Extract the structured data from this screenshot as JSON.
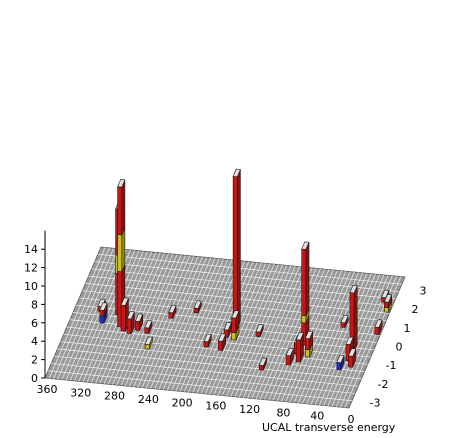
{
  "chart_data": {
    "type": "bar3d",
    "title": "",
    "xlabel": "UCAL transverse energy",
    "ylabel": "",
    "zlabel": "",
    "phi_ticks": [
      "360",
      "320",
      "280",
      "240",
      "200",
      "160",
      "120",
      "80",
      "40",
      "0"
    ],
    "eta_ticks": [
      "3",
      "2",
      "1",
      "0",
      "-1",
      "-2",
      "-3"
    ],
    "z_ticks": [
      "0",
      "2",
      "4",
      "6",
      "8",
      "10",
      "12",
      "14"
    ],
    "phi_range": [
      0,
      360
    ],
    "eta_range": [
      -3.5,
      3.5
    ],
    "z_range": [
      0,
      16
    ],
    "grid": true,
    "colors": {
      "floor_fill": "#9a9a9a",
      "floor_grid": "#ffffff",
      "red": "#cc1414",
      "yellow": "#cdbf1a",
      "blue": "#1a2ec2",
      "top": "#e0e0e0",
      "edge": "#1a1a1a"
    },
    "towers": [
      {
        "phi": 300,
        "eta": -0.3,
        "segments": [
          {
            "color": "red",
            "value": 6
          },
          {
            "color": "yellow",
            "value": 4
          },
          {
            "color": "red",
            "value": 5.2
          }
        ]
      },
      {
        "phi": 308,
        "eta": 0.3,
        "segments": [
          {
            "color": "red",
            "value": 4.5
          },
          {
            "color": "yellow",
            "value": 2
          },
          {
            "color": "red",
            "value": 5
          }
        ]
      },
      {
        "phi": 322,
        "eta": -0.2,
        "segments": [
          {
            "color": "blue",
            "value": 0.8
          },
          {
            "color": "red",
            "value": 0.6
          }
        ]
      },
      {
        "phi": 294,
        "eta": -0.5,
        "segments": [
          {
            "color": "red",
            "value": 2.8
          }
        ]
      },
      {
        "phi": 286,
        "eta": -0.6,
        "segments": [
          {
            "color": "red",
            "value": 1.6
          }
        ]
      },
      {
        "phi": 278,
        "eta": -0.4,
        "segments": [
          {
            "color": "red",
            "value": 1
          }
        ]
      },
      {
        "phi": 266,
        "eta": -0.5,
        "segments": [
          {
            "color": "red",
            "value": 0.6
          }
        ]
      },
      {
        "phi": 168,
        "eta": 0.2,
        "segments": [
          {
            "color": "red",
            "value": 16.5
          }
        ]
      },
      {
        "phi": 164,
        "eta": -0.4,
        "segments": [
          {
            "color": "yellow",
            "value": 0.8
          },
          {
            "color": "red",
            "value": 1.6
          }
        ]
      },
      {
        "phi": 174,
        "eta": -0.3,
        "segments": [
          {
            "color": "red",
            "value": 0.8
          }
        ]
      },
      {
        "phi": 174,
        "eta": -1.0,
        "segments": [
          {
            "color": "red",
            "value": 1
          }
        ]
      },
      {
        "phi": 82,
        "eta": -0.3,
        "segments": [
          {
            "color": "red",
            "value": 2.4
          },
          {
            "color": "yellow",
            "value": 0.8
          },
          {
            "color": "red",
            "value": 7.2
          }
        ]
      },
      {
        "phi": 86,
        "eta": -0.8,
        "segments": [
          {
            "color": "red",
            "value": 1.2
          }
        ]
      },
      {
        "phi": 80,
        "eta": -1.2,
        "segments": [
          {
            "color": "red",
            "value": 2.4
          }
        ]
      },
      {
        "phi": 72,
        "eta": -0.9,
        "segments": [
          {
            "color": "yellow",
            "value": 0.8
          },
          {
            "color": "red",
            "value": 1.2
          }
        ]
      },
      {
        "phi": 90,
        "eta": -1.4,
        "segments": [
          {
            "color": "red",
            "value": 1
          }
        ]
      },
      {
        "phi": 24,
        "eta": -0.4,
        "segments": [
          {
            "color": "red",
            "value": 6.4
          }
        ]
      },
      {
        "phi": 24,
        "eta": -0.9,
        "segments": [
          {
            "color": "red",
            "value": 1.8
          }
        ]
      },
      {
        "phi": 30,
        "eta": -1.4,
        "segments": [
          {
            "color": "blue",
            "value": 0.8
          }
        ]
      },
      {
        "phi": 18,
        "eta": -1.2,
        "segments": [
          {
            "color": "red",
            "value": 1.2
          }
        ]
      },
      {
        "phi": 4,
        "eta": 1.8,
        "segments": [
          {
            "color": "yellow",
            "value": 0.5
          },
          {
            "color": "red",
            "value": 0.6
          }
        ]
      },
      {
        "phi": 4,
        "eta": 0.6,
        "segments": [
          {
            "color": "red",
            "value": 0.8
          }
        ]
      },
      {
        "phi": 246,
        "eta": 0.4,
        "segments": [
          {
            "color": "red",
            "value": 0.6
          }
        ]
      },
      {
        "phi": 220,
        "eta": 0.8,
        "segments": [
          {
            "color": "red",
            "value": 0.5
          }
        ]
      },
      {
        "phi": 192,
        "eta": -0.9,
        "segments": [
          {
            "color": "red",
            "value": 0.6
          }
        ]
      },
      {
        "phi": 138,
        "eta": -0.1,
        "segments": [
          {
            "color": "red",
            "value": 0.5
          }
        ]
      },
      {
        "phi": 118,
        "eta": -1.8,
        "segments": [
          {
            "color": "red",
            "value": 0.5
          }
        ]
      },
      {
        "phi": 46,
        "eta": 0.8,
        "segments": [
          {
            "color": "red",
            "value": 0.5
          }
        ]
      },
      {
        "phi": 330,
        "eta": 0.4,
        "segments": [
          {
            "color": "red",
            "value": 0.5
          }
        ]
      },
      {
        "phi": 258,
        "eta": -1.3,
        "segments": [
          {
            "color": "yellow",
            "value": 0.5
          }
        ]
      },
      {
        "phi": 12,
        "eta": 2.3,
        "segments": [
          {
            "color": "red",
            "value": 0.5
          }
        ]
      }
    ]
  }
}
